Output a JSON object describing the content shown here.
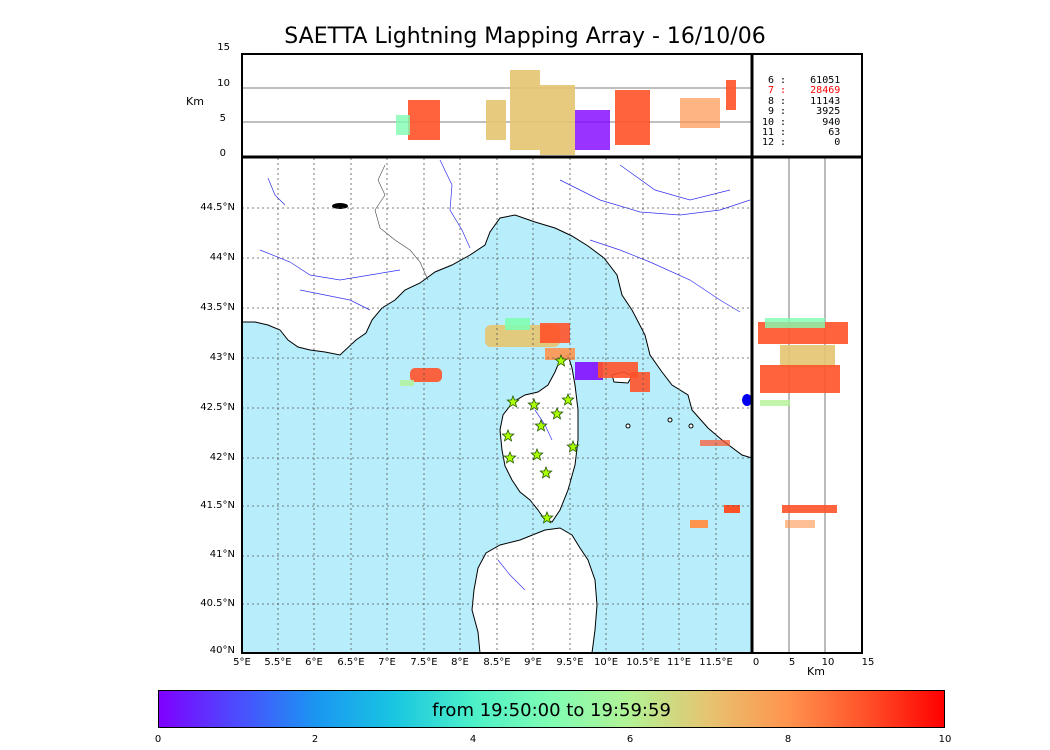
{
  "title": "SAETTA Lightning Mapping Array - 16/10/06",
  "top_panel": {
    "y_label": "Km",
    "y_ticks": [
      "15",
      "10",
      "5",
      "0"
    ]
  },
  "right_panel": {
    "x_label": "Km",
    "x_ticks": [
      "0",
      "5",
      "10",
      "15"
    ]
  },
  "map": {
    "lat_ticks": [
      "44.5°N",
      "44°N",
      "43.5°N",
      "43°N",
      "42.5°N",
      "42°N",
      "41.5°N",
      "41°N",
      "40.5°N",
      "40°N"
    ],
    "lon_ticks": [
      "5°E",
      "5.5°E",
      "6°E",
      "6.5°E",
      "7°E",
      "7.5°E",
      "8°E",
      "8.5°E",
      "9°E",
      "9.5°E",
      "10°E",
      "10.5°E",
      "11°E",
      "11.5°E"
    ],
    "sea_color": "#b8eefb",
    "land_color": "#ffffff",
    "river_color": "#3333ee"
  },
  "stats": [
    {
      "n": "6",
      "count": "61051",
      "highlight": false
    },
    {
      "n": "7",
      "count": "28469",
      "highlight": true
    },
    {
      "n": "8",
      "count": "11143",
      "highlight": false
    },
    {
      "n": "9",
      "count": "3925",
      "highlight": false
    },
    {
      "n": "10",
      "count": "940",
      "highlight": false
    },
    {
      "n": "11",
      "count": "63",
      "highlight": false
    },
    {
      "n": "12",
      "count": "0",
      "highlight": false
    }
  ],
  "colorbar": {
    "label": "from 19:50:00 to 19:59:59",
    "ticks": [
      "0",
      "2",
      "4",
      "6",
      "8",
      "10"
    ]
  }
}
